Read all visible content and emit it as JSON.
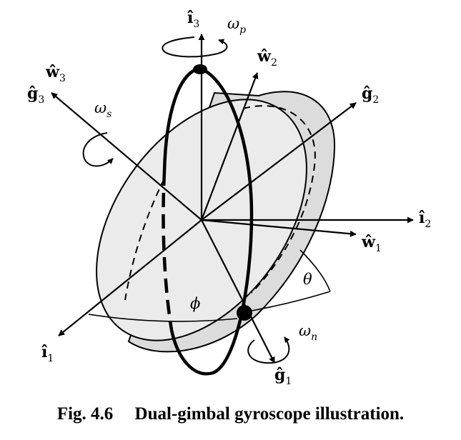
{
  "labels": {
    "i3": {
      "hat": "î",
      "sub": "3"
    },
    "omega_p": {
      "sym": "ω",
      "sub": "p"
    },
    "w2": {
      "hat": "ŵ",
      "sub": "2"
    },
    "g3": {
      "hat": "ĝ",
      "sub": "3"
    },
    "w3": {
      "hat": "ŵ",
      "sub": "3"
    },
    "omega_s": {
      "sym": "ω",
      "sub": "s"
    },
    "g2": {
      "hat": "ĝ",
      "sub": "2"
    },
    "i2": {
      "hat": "î",
      "sub": "2"
    },
    "w1": {
      "hat": "ŵ",
      "sub": "1"
    },
    "theta": "θ",
    "phi": "ϕ",
    "omega_n": {
      "sym": "ω",
      "sub": "n"
    },
    "i1": {
      "hat": "î",
      "sub": "1"
    },
    "g1": {
      "hat": "ĝ",
      "sub": "1"
    }
  },
  "caption": {
    "number": "Fig. 4.6",
    "title": "Dual-gimbal gyroscope illustration."
  },
  "colors": {
    "disk_fill": "#e6e6e6",
    "stroke": "#000000"
  }
}
